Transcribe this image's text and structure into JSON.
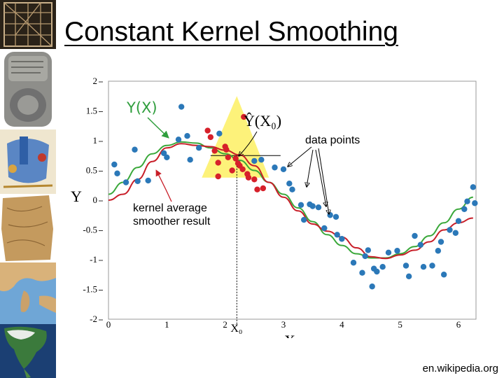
{
  "slide": {
    "title": "Constant Kernel Smoothing",
    "source": "en.wikipedia.org"
  },
  "sidebar": {
    "images": [
      "grid-tablet-image",
      "cuneiform-tablet-image",
      "illuminated-map-image",
      "stone-map-image",
      "mediterranean-map-image",
      "north-america-map-image"
    ]
  },
  "chart_data": {
    "type": "scatter",
    "title": "",
    "xlabel": "X",
    "ylabel": "Y",
    "xlim": [
      0,
      6.3
    ],
    "ylim": [
      -2,
      2
    ],
    "x_ticks": [
      "0",
      "1",
      "2",
      "3",
      "4",
      "5",
      "6"
    ],
    "y_ticks": [
      "2",
      "1.5",
      "1",
      "0.5",
      "0",
      "-0.5",
      "-1",
      "-1.5",
      "-2"
    ],
    "x0_label": "X₀",
    "x0_value": 2.2,
    "annotations": {
      "true_function": "Y(X)",
      "estimate": "Ŷ(X₀)",
      "data_points": "data points",
      "smoother": "kernel average smoother result"
    },
    "colors": {
      "points": "#2b78b8",
      "window_points": "#d6202a",
      "true_function": "#3aa83a",
      "smoother": "#c81e28",
      "kernel": "#fdf27a",
      "annotation_green": "#2f9e3d"
    },
    "kernel_window": [
      1.6,
      2.75
    ],
    "series": [
      {
        "name": "Y(X)",
        "role": "true_function",
        "x": [
          0,
          0.25,
          0.5,
          0.75,
          1,
          1.25,
          1.5,
          1.75,
          2,
          2.25,
          2.5,
          2.75,
          3,
          3.25,
          3.5,
          3.75,
          4,
          4.25,
          4.5,
          4.75,
          5,
          5.25,
          5.5,
          5.75,
          6,
          6.25
        ],
        "y": [
          0.1,
          0.3,
          0.55,
          0.78,
          0.92,
          0.98,
          0.96,
          0.88,
          0.78,
          0.67,
          0.5,
          0.3,
          0.1,
          -0.13,
          -0.36,
          -0.58,
          -0.76,
          -0.9,
          -0.97,
          -0.97,
          -0.9,
          -0.78,
          -0.6,
          -0.38,
          -0.15,
          0.05
        ]
      },
      {
        "name": "kernel average smoother result",
        "role": "smoother",
        "x": [
          0,
          0.25,
          0.5,
          0.75,
          1,
          1.25,
          1.5,
          1.75,
          2,
          2.25,
          2.5,
          2.75,
          3,
          3.25,
          3.5,
          3.75,
          4,
          4.25,
          4.5,
          4.75,
          5,
          5.25,
          5.5,
          5.75,
          6,
          6.25
        ],
        "y": [
          0.0,
          0.1,
          0.35,
          0.65,
          0.88,
          0.95,
          0.92,
          0.9,
          0.84,
          0.76,
          0.58,
          0.3,
          0.05,
          -0.18,
          -0.4,
          -0.52,
          -0.62,
          -0.8,
          -0.95,
          -0.98,
          -0.92,
          -0.84,
          -0.7,
          -0.5,
          -0.38,
          -0.3
        ]
      }
    ],
    "points": [
      {
        "x": 0.1,
        "y": 0.6
      },
      {
        "x": 0.15,
        "y": 0.45
      },
      {
        "x": 0.3,
        "y": 0.3
      },
      {
        "x": 0.45,
        "y": 0.85
      },
      {
        "x": 0.5,
        "y": 0.32
      },
      {
        "x": 0.68,
        "y": 0.33
      },
      {
        "x": 0.95,
        "y": 0.79
      },
      {
        "x": 1.0,
        "y": 0.72
      },
      {
        "x": 1.2,
        "y": 1.02
      },
      {
        "x": 1.25,
        "y": 1.57
      },
      {
        "x": 1.35,
        "y": 1.08
      },
      {
        "x": 1.4,
        "y": 0.68
      },
      {
        "x": 1.55,
        "y": 0.88
      },
      {
        "x": 1.9,
        "y": 1.12
      },
      {
        "x": 2.5,
        "y": 0.66
      },
      {
        "x": 2.62,
        "y": 0.68
      },
      {
        "x": 2.85,
        "y": 0.55
      },
      {
        "x": 3.0,
        "y": 0.52
      },
      {
        "x": 3.1,
        "y": 0.28
      },
      {
        "x": 3.15,
        "y": 0.18
      },
      {
        "x": 3.3,
        "y": -0.08
      },
      {
        "x": 3.35,
        "y": -0.33
      },
      {
        "x": 3.45,
        "y": -0.07
      },
      {
        "x": 3.5,
        "y": -0.1
      },
      {
        "x": 3.6,
        "y": -0.12
      },
      {
        "x": 3.7,
        "y": -0.47
      },
      {
        "x": 3.8,
        "y": -0.25
      },
      {
        "x": 3.9,
        "y": -0.28
      },
      {
        "x": 3.92,
        "y": -0.58
      },
      {
        "x": 4.0,
        "y": -0.65
      },
      {
        "x": 4.2,
        "y": -1.05
      },
      {
        "x": 4.35,
        "y": -1.22
      },
      {
        "x": 4.4,
        "y": -0.94
      },
      {
        "x": 4.45,
        "y": -0.84
      },
      {
        "x": 4.55,
        "y": -1.15
      },
      {
        "x": 4.52,
        "y": -1.45
      },
      {
        "x": 4.6,
        "y": -1.2
      },
      {
        "x": 4.7,
        "y": -1.12
      },
      {
        "x": 4.8,
        "y": -0.88
      },
      {
        "x": 4.95,
        "y": -0.85
      },
      {
        "x": 5.1,
        "y": -1.1
      },
      {
        "x": 5.15,
        "y": -1.28
      },
      {
        "x": 5.25,
        "y": -0.6
      },
      {
        "x": 5.35,
        "y": -0.75
      },
      {
        "x": 5.4,
        "y": -1.12
      },
      {
        "x": 5.55,
        "y": -1.1
      },
      {
        "x": 5.65,
        "y": -0.85
      },
      {
        "x": 5.7,
        "y": -0.7
      },
      {
        "x": 5.75,
        "y": -1.25
      },
      {
        "x": 5.85,
        "y": -0.5
      },
      {
        "x": 5.95,
        "y": -0.55
      },
      {
        "x": 6.0,
        "y": -0.35
      },
      {
        "x": 6.1,
        "y": -0.15
      },
      {
        "x": 6.15,
        "y": -0.02
      },
      {
        "x": 6.25,
        "y": 0.22
      },
      {
        "x": 6.28,
        "y": -0.05
      }
    ],
    "window_points": [
      {
        "x": 1.7,
        "y": 1.17
      },
      {
        "x": 1.75,
        "y": 1.06
      },
      {
        "x": 1.82,
        "y": 0.83
      },
      {
        "x": 1.88,
        "y": 0.63
      },
      {
        "x": 1.88,
        "y": 0.4
      },
      {
        "x": 2.0,
        "y": 0.9
      },
      {
        "x": 2.02,
        "y": 0.85
      },
      {
        "x": 2.05,
        "y": 0.72
      },
      {
        "x": 2.12,
        "y": 0.5
      },
      {
        "x": 2.18,
        "y": 0.7
      },
      {
        "x": 2.22,
        "y": 0.62
      },
      {
        "x": 2.25,
        "y": 0.58
      },
      {
        "x": 2.3,
        "y": 0.52
      },
      {
        "x": 2.32,
        "y": 1.4
      },
      {
        "x": 2.38,
        "y": 0.44
      },
      {
        "x": 2.4,
        "y": 0.38
      },
      {
        "x": 2.5,
        "y": 0.35
      },
      {
        "x": 2.55,
        "y": 0.18
      },
      {
        "x": 2.65,
        "y": 0.2
      }
    ]
  }
}
